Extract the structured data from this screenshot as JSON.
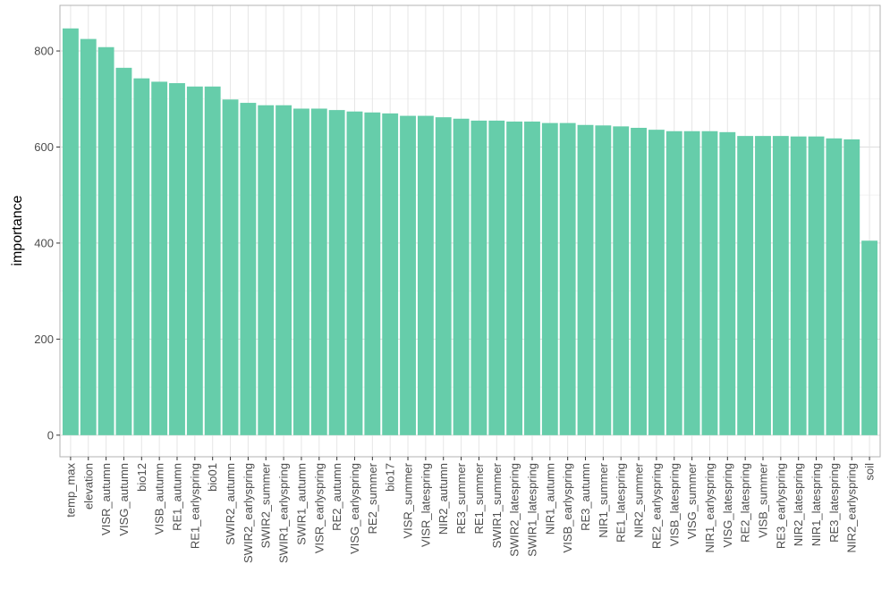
{
  "chart_data": {
    "type": "bar",
    "title": "",
    "xlabel": "",
    "ylabel": "importance",
    "ylim": [
      -45,
      895
    ],
    "yticks": [
      0,
      200,
      400,
      600,
      800
    ],
    "grid": true,
    "legend": "none",
    "bar_color": "#66CDAA",
    "categories": [
      "temp_max",
      "elevation",
      "VISR_autumn",
      "VISG_autumn",
      "bio12",
      "VISB_autumn",
      "RE1_autumn",
      "RE1_earlyspring",
      "bio01",
      "SWIR2_autumn",
      "SWIR2_earlyspring",
      "SWIR2_summer",
      "SWIR1_earlyspring",
      "SWIR1_autumn",
      "VISR_earlyspring",
      "RE2_autumn",
      "VISG_earlyspring",
      "RE2_summer",
      "bio17",
      "VISR_summer",
      "VISR_latespring",
      "NIR2_autumn",
      "RE3_summer",
      "RE1_summer",
      "SWIR1_summer",
      "SWIR2_latespring",
      "SWIR1_latespring",
      "NIR1_autumn",
      "VISB_earlyspring",
      "RE3_autumn",
      "NIR1_summer",
      "RE1_latespring",
      "NIR2_summer",
      "RE2_earlyspring",
      "VISB_latespring",
      "VISG_summer",
      "NIR1_earlyspring",
      "VISG_latespring",
      "RE2_latespring",
      "VISB_summer",
      "RE3_earlyspring",
      "NIR2_latespring",
      "NIR1_latespring",
      "RE3_latespring",
      "NIR2_earlyspring",
      "soil"
    ],
    "values": [
      847,
      825,
      808,
      765,
      743,
      736,
      733,
      726,
      726,
      699,
      692,
      687,
      687,
      680,
      680,
      677,
      674,
      672,
      670,
      665,
      665,
      662,
      659,
      655,
      655,
      653,
      653,
      650,
      650,
      646,
      645,
      643,
      640,
      636,
      633,
      633,
      633,
      631,
      623,
      623,
      623,
      622,
      622,
      618,
      616,
      405
    ]
  }
}
